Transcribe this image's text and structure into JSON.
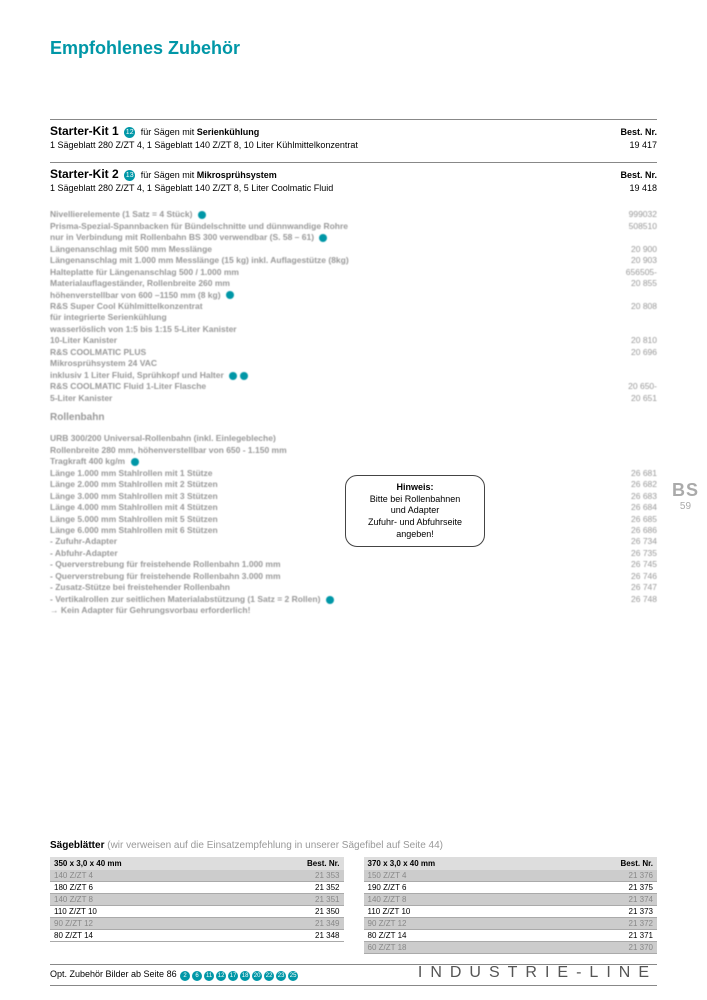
{
  "title": "Empfohlenes Zubehör",
  "bestnr_label": "Best. Nr.",
  "kits": [
    {
      "name": "Starter-Kit 1",
      "badge": "12",
      "for_prefix": "für Sägen mit ",
      "for_bold": "Serienkühlung",
      "contents": "1 Sägeblatt 280 Z/ZT 4, 1 Sägeblatt 140 Z/ZT 8, 10 Liter Kühlmittelkonzentrat",
      "price": "19 417"
    },
    {
      "name": "Starter-Kit 2",
      "badge": "13",
      "for_prefix": "für Sägen mit ",
      "for_bold": "Mikrosprühsystem",
      "contents": "1 Sägeblatt 280 Z/ZT 4, 1 Sägeblatt 140 Z/ZT 8, 5 Liter Coolmatic Fluid",
      "price": "19 418"
    }
  ],
  "accessories": [
    {
      "text": "Nivellierelemente (1 Satz = 4 Stück)",
      "dot": true,
      "price": "999032"
    },
    {
      "text": "Prisma-Spezial-Spannbacken für Bündelschnitte und dünnwandige Rohre\nnur in Verbindung mit Rollenbahn BS 300 verwendbar (S. 58 – 61)",
      "dot": true,
      "price": "508510"
    },
    {
      "text": "Längenanschlag mit 500 mm Messlänge",
      "price": "20 900"
    },
    {
      "text": "Längenanschlag mit 1.000 mm Messlänge (15 kg) inkl. Auflagestütze (8kg)",
      "price": "20 903"
    },
    {
      "text": "Halteplatte für Längenanschlag 500 / 1.000 mm",
      "price": "656505-"
    },
    {
      "text": "Materialauflageständer, Rollenbreite 260 mm\nhöhenverstellbar von 600 –1150 mm (8 kg)",
      "dot": true,
      "price": "20 855"
    },
    {
      "text": "R&S Super Cool Kühlmittelkonzentrat\nfür integrierte Serienkühlung\nwasserlöslich von 1:5 bis 1:15 5-Liter Kanister",
      "price": "20 808"
    },
    {
      "text": "10-Liter Kanister",
      "price": "20 810"
    },
    {
      "text": "R&S COOLMATIC PLUS\nMikrosprühsystem 24 VAC\ninklusiv 1 Liter Fluid, Sprühkopf und Halter",
      "dot2": true,
      "price": "20 696"
    },
    {
      "text": "R&S COOLMATIC Fluid 1-Liter Flasche",
      "price": "20 650-"
    },
    {
      "text": "5-Liter Kanister",
      "price": "20 651"
    }
  ],
  "rollenbahn_header": "Rollenbahn",
  "rollenbahn": [
    {
      "text": "URB 300/200 Universal-Rollenbahn (inkl. Einlegebleche)\nRollenbreite 280 mm, höhenverstellbar von 650 - 1.150 mm\nTragkraft 400 kg/m",
      "dot": true,
      "price": ""
    },
    {
      "text": "Länge 1.000 mm Stahlrollen mit 1 Stütze",
      "price": "26 681"
    },
    {
      "text": "Länge 2.000 mm Stahlrollen mit 2 Stützen",
      "price": "26 682"
    },
    {
      "text": "Länge 3.000 mm Stahlrollen mit 3 Stützen",
      "price": "26 683"
    },
    {
      "text": "Länge 4.000 mm Stahlrollen mit 4 Stützen",
      "price": "26 684"
    },
    {
      "text": "Länge 5.000 mm Stahlrollen mit 5 Stützen",
      "price": "26 685"
    },
    {
      "text": "Länge 6.000 mm Stahlrollen mit 6 Stützen",
      "price": "26 686"
    },
    {
      "text": "- Zufuhr-Adapter",
      "price": "26 734"
    },
    {
      "text": "- Abfuhr-Adapter",
      "price": "26 735"
    },
    {
      "text": "- Querverstrebung für freistehende Rollenbahn 1.000 mm",
      "price": "26 745"
    },
    {
      "text": "- Querverstrebung für freistehende Rollenbahn 3.000 mm",
      "price": "26 746"
    },
    {
      "text": "- Zusatz-Stütze bei freistehender Rollenbahn",
      "price": "26 747"
    },
    {
      "text": "- Vertikalrollen zur seitlichen Materialabstützung (1 Satz = 2 Rollen)",
      "dot": true,
      "price": "26 748"
    },
    {
      "text": "→ Kein Adapter für Gehrungsvorbau erforderlich!",
      "price": ""
    }
  ],
  "hint": {
    "title": "Hinweis:",
    "l1": "Bitte bei Rollenbahnen",
    "l2": "und Adapter",
    "l3": "Zufuhr- und Abfuhrseite",
    "l4": "angeben!"
  },
  "side": {
    "bs": "BS",
    "page": "59"
  },
  "sawblades": {
    "title_bold": "Sägeblätter",
    "title_note": "(wir verweisen auf die Einsatzempfehlung in unserer Sägefibel auf Seite 44)",
    "left": {
      "head": "350 x 3,0 x 40 mm",
      "rows": [
        {
          "t": "140 Z/ZT 4",
          "p": "21 353",
          "alt": true
        },
        {
          "t": "180 Z/ZT 6",
          "p": "21 352"
        },
        {
          "t": "140 Z/ZT 8",
          "p": "21 351",
          "alt": true
        },
        {
          "t": "110 Z/ZT 10",
          "p": "21 350"
        },
        {
          "t": "90 Z/ZT 12",
          "p": "21 349",
          "alt": true
        },
        {
          "t": "80 Z/ZT 14",
          "p": "21 348"
        }
      ]
    },
    "right": {
      "head": "370 x 3,0 x 40 mm",
      "rows": [
        {
          "t": "150 Z/ZT 4",
          "p": "21 376",
          "alt": true
        },
        {
          "t": "190 Z/ZT 6",
          "p": "21 375"
        },
        {
          "t": "140 Z/ZT 8",
          "p": "21 374",
          "alt": true
        },
        {
          "t": "110 Z/ZT 10",
          "p": "21 373"
        },
        {
          "t": "90 Z/ZT 12",
          "p": "21 372",
          "alt": true
        },
        {
          "t": "80 Z/ZT 14",
          "p": "21 371"
        },
        {
          "t": "60 Z/ZT 18",
          "p": "21 370",
          "alt": true
        }
      ]
    }
  },
  "opt_line": "Opt. Zubehör Bilder ab Seite 86",
  "opt_nums": [
    "2",
    "6",
    "11",
    "12",
    "17",
    "18",
    "20",
    "22",
    "23",
    "25"
  ],
  "footer": "INDUSTRIE-LINE",
  "colors": {
    "accent": "#0097a7",
    "muted": "#999999",
    "row_alt": "#cccccc",
    "head_bg": "#dddddd"
  }
}
